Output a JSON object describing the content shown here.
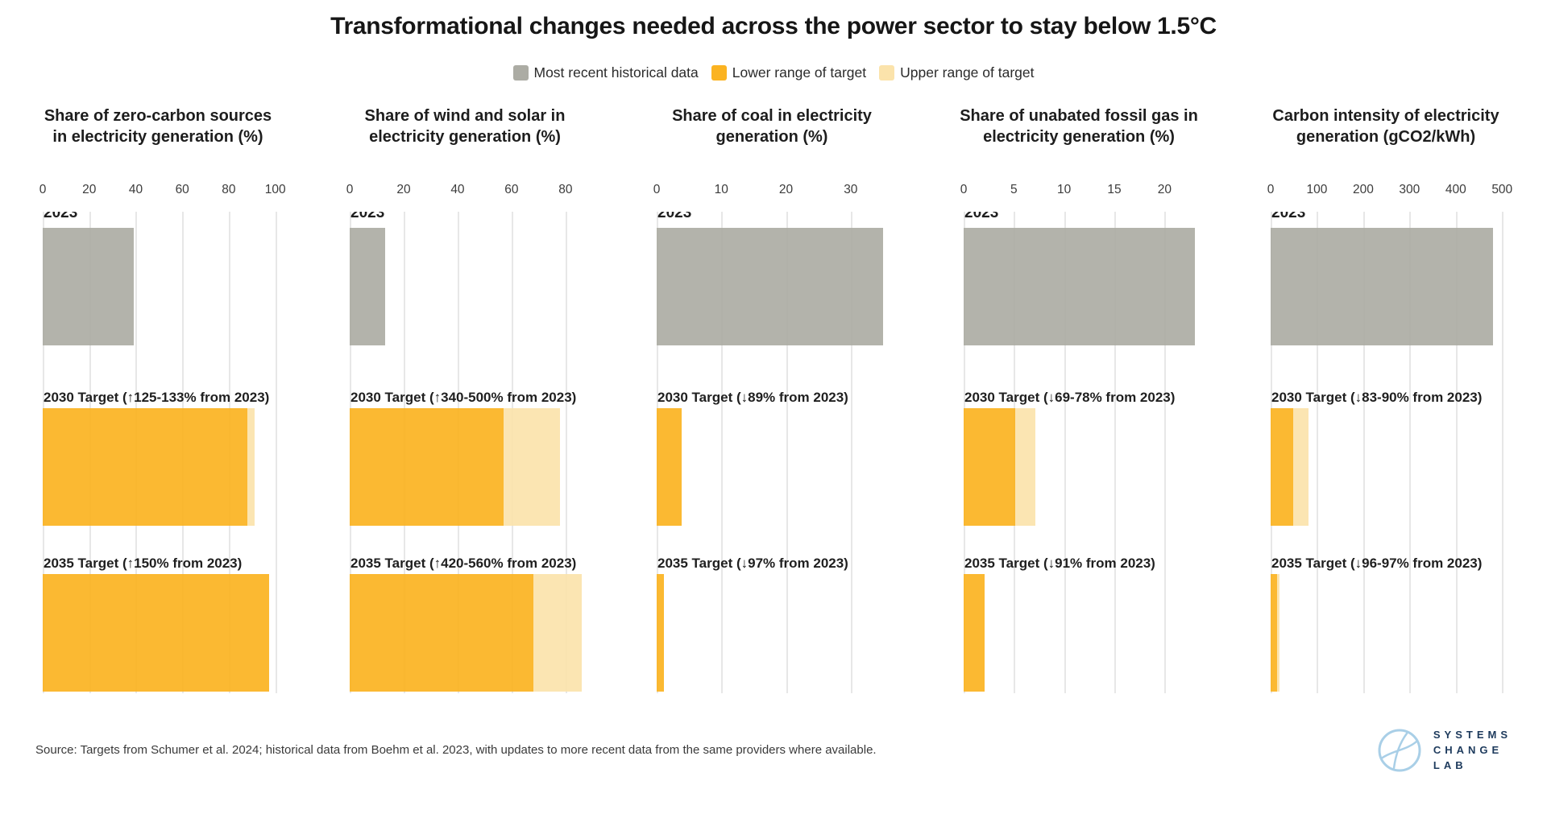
{
  "title": "Transformational changes needed across the power sector to stay below 1.5°C",
  "legend": [
    {
      "label": "Most recent historical data",
      "color": "#ACACA4"
    },
    {
      "label": "Lower range of target",
      "color": "#FBB321"
    },
    {
      "label": "Upper range of target",
      "color": "#FBE3AB"
    }
  ],
  "colors": {
    "historical": "#ACACA4",
    "lower": "#FBB321",
    "upper": "#FBE3AB",
    "gridline": "#E7E7E7",
    "logo_blue": "#A9CFE7",
    "logo_navy": "#1D3A5C"
  },
  "source": "Source: Targets from Schumer et al. 2024; historical data from Boehm et al. 2023, with updates to more recent data from the same providers where available.",
  "logo": {
    "lines": [
      "SYSTEMS",
      "CHANGE",
      "LAB"
    ]
  },
  "chart_data": [
    {
      "type": "bar",
      "orientation": "horizontal",
      "title": "Share of zero-carbon sources in electricity generation (%)",
      "ticks": [
        0,
        20,
        40,
        60,
        80,
        100
      ],
      "scale_max": 101.5,
      "rows": [
        {
          "label": "2023",
          "series": "historical",
          "value": 39
        },
        {
          "label": "2030 Target (↑125-133% from 2023)",
          "series": "target",
          "lower": 88,
          "upper": 91
        },
        {
          "label": "2035 Target (↑150% from 2023)",
          "series": "target",
          "lower": 97.5,
          "upper": 97.5
        }
      ]
    },
    {
      "type": "bar",
      "orientation": "horizontal",
      "title": "Share of wind and solar in electricity generation (%)",
      "ticks": [
        0,
        20,
        40,
        60,
        80
      ],
      "scale_max": 87.5,
      "rows": [
        {
          "label": "2023",
          "series": "historical",
          "value": 13
        },
        {
          "label": "2030 Target (↑340-500% from 2023)",
          "series": "target",
          "lower": 57,
          "upper": 78
        },
        {
          "label": "2035 Target (↑420-560% from 2023)",
          "series": "target",
          "lower": 68,
          "upper": 86
        }
      ]
    },
    {
      "type": "bar",
      "orientation": "horizontal",
      "title": "Share of coal in electricity generation (%)",
      "ticks": [
        0,
        10,
        20,
        30
      ],
      "scale_max": 36.5,
      "rows": [
        {
          "label": "2023",
          "series": "historical",
          "value": 35
        },
        {
          "label": "2030 Target (↓89% from 2023)",
          "series": "target",
          "lower": 3.9,
          "upper": 3.9
        },
        {
          "label": "2035 Target (↓97% from 2023)",
          "series": "target",
          "lower": 1.1,
          "upper": 1.1
        }
      ]
    },
    {
      "type": "bar",
      "orientation": "horizontal",
      "title": "Share of unabated fossil gas in electricity generation (%)",
      "ticks": [
        0,
        5,
        10,
        15,
        20
      ],
      "scale_max": 23.5,
      "rows": [
        {
          "label": "2023",
          "series": "historical",
          "value": 23
        },
        {
          "label": "2030 Target (↓69-78% from 2023)",
          "series": "target",
          "lower": 5.1,
          "upper": 7.1
        },
        {
          "label": "2035 Target (↓91% from 2023)",
          "series": "target",
          "lower": 2.1,
          "upper": 2.1
        }
      ]
    },
    {
      "type": "bar",
      "orientation": "horizontal",
      "title": "Carbon intensity of electricity generation (gCO2/kWh)",
      "ticks": [
        0,
        100,
        200,
        300,
        400,
        500
      ],
      "scale_max": 510,
      "rows": [
        {
          "label": "2023",
          "series": "historical",
          "value": 480
        },
        {
          "label": "2030 Target (↓83-90% from 2023)",
          "series": "target",
          "lower": 48,
          "upper": 82
        },
        {
          "label": "2035 Target (↓96-97% from 2023)",
          "series": "target",
          "lower": 14,
          "upper": 19
        }
      ]
    }
  ]
}
